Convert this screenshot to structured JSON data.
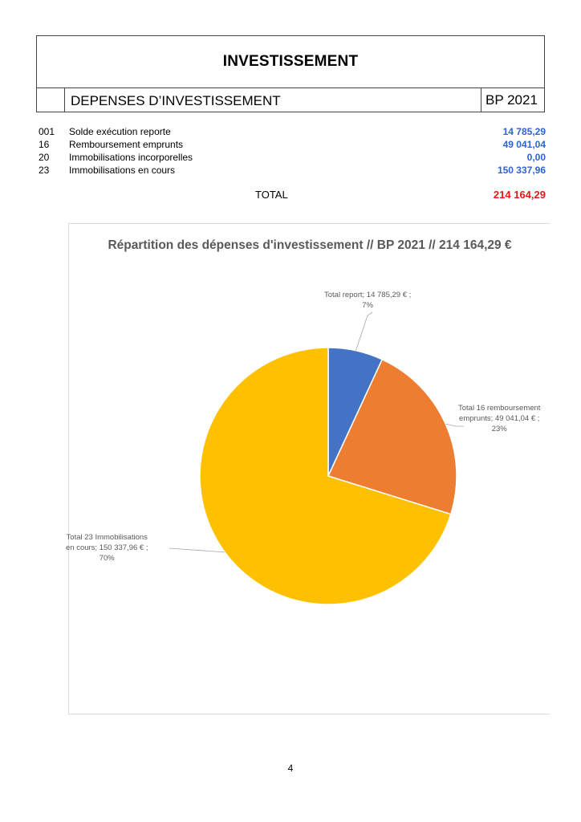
{
  "section_title": "INVESTISSEMENT",
  "table": {
    "title": "DEPENSES D’INVESTISSEMENT",
    "column_label": "BP 2021",
    "rows": [
      {
        "code": "001",
        "label": "Solde exécution reporte",
        "amount": "14 785,29"
      },
      {
        "code": "16",
        "label": "Remboursement emprunts",
        "amount": "49 041,04"
      },
      {
        "code": "20",
        "label": "Immobilisations incorporelles",
        "amount": "0,00"
      },
      {
        "code": "23",
        "label": "Immobilisations en cours",
        "amount": "150 337,96"
      }
    ],
    "total_label": "TOTAL",
    "total_amount": "214 164,29"
  },
  "chart_data": {
    "type": "pie",
    "title": "Répartition des dépenses d'investissement // BP 2021 // 214 164,29 €",
    "slices": [
      {
        "label": "Total report",
        "value": 14785.29,
        "value_text": "14 785,29 €",
        "percent": "7%",
        "color": "#4472c4"
      },
      {
        "label": "Total 16 remboursement emprunts",
        "value": 49041.04,
        "value_text": "49 041,04 €",
        "percent": "23%",
        "color": "#ed7d31"
      },
      {
        "label": "Total 23 Immobilisations en cours",
        "value": 150337.96,
        "value_text": "150 337,96 €",
        "percent": "70%",
        "color": "#ffc000"
      }
    ],
    "labels": {
      "report_line1": "Total report;  14 785,29 € ;",
      "report_line2": "7%",
      "remb_line1": "Total 16 remboursement",
      "remb_line2": "emprunts;  49 041,04 € ;",
      "remb_line3": "23%",
      "immo_line1": "Total 23 Immobilisations",
      "immo_line2": "en cours;  150 337,96 € ;",
      "immo_line3": "70%"
    }
  },
  "page_number": "4"
}
